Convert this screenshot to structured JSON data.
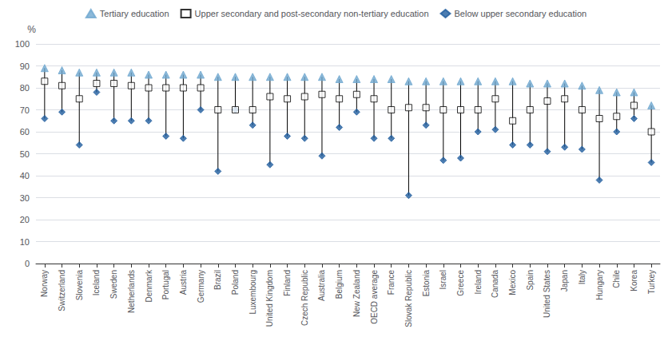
{
  "chart_data": {
    "type": "scatter",
    "ylabel": "%",
    "categories": [
      "Norway",
      "Switzerland",
      "Slovenia",
      "Iceland",
      "Sweden",
      "Netherlands",
      "Denmark",
      "Portugal",
      "Austria",
      "Germany",
      "Brazil",
      "Poland",
      "Luxembourg",
      "United Kingdom",
      "Finland",
      "Czech Republic",
      "Australia",
      "Belgium",
      "New Zealand",
      "OECD average",
      "France",
      "Slovak Republic",
      "Estonia",
      "Israel",
      "Greece",
      "Ireland",
      "Canada",
      "Mexico",
      "Spain",
      "United States",
      "Japan",
      "Italy",
      "Hungary",
      "Chile",
      "Korea",
      "Turkey"
    ],
    "series": [
      {
        "name": "Tertiary education",
        "color": "#6fa8d0",
        "marker": "triangle",
        "values": [
          89,
          88,
          87,
          87,
          87,
          87,
          86,
          86,
          86,
          86,
          85,
          85,
          85,
          85,
          85,
          85,
          85,
          84,
          84,
          84,
          84,
          83,
          83,
          83,
          83,
          83,
          83,
          83,
          82,
          82,
          82,
          81,
          79,
          78,
          78,
          72
        ]
      },
      {
        "name": "Upper secondary and post-secondary non-tertiary education",
        "color": "#ffffff",
        "marker": "square",
        "values": [
          83,
          81,
          75,
          82,
          82,
          81,
          80,
          80,
          80,
          80,
          70,
          70,
          70,
          76,
          75,
          76,
          77,
          75,
          77,
          75,
          70,
          71,
          71,
          70,
          70,
          70,
          75,
          65,
          70,
          74,
          75,
          70,
          66,
          67,
          72,
          60
        ]
      },
      {
        "name": "Below upper secondary education",
        "color": "#1f5c9e",
        "marker": "diamond",
        "values": [
          66,
          69,
          54,
          78,
          65,
          65,
          65,
          58,
          57,
          70,
          42,
          70,
          63,
          45,
          58,
          57,
          49,
          62,
          69,
          57,
          57,
          31,
          63,
          47,
          48,
          60,
          61,
          54,
          54,
          51,
          53,
          52,
          38,
          60,
          66,
          46
        ]
      }
    ],
    "ylim": [
      0,
      100
    ],
    "yticks": [
      0,
      10,
      20,
      30,
      40,
      50,
      60,
      70,
      80,
      90,
      100
    ],
    "grid": true,
    "legend": "top"
  }
}
